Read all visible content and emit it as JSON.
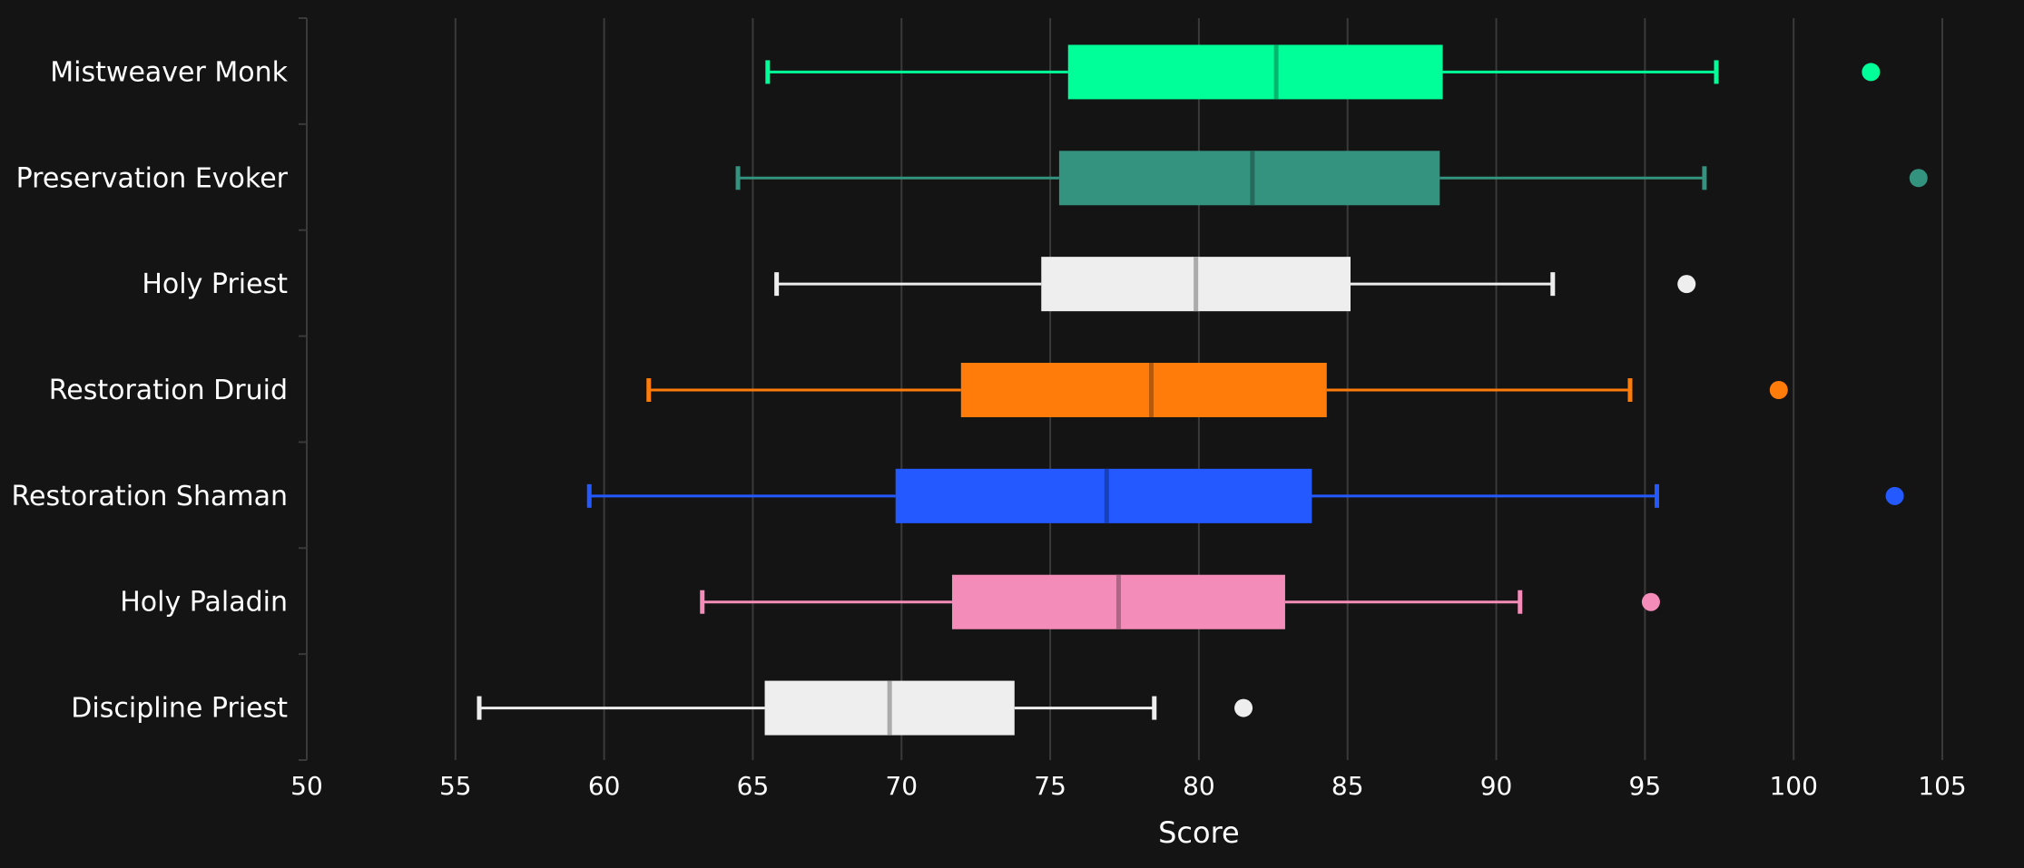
{
  "chart_data": {
    "type": "boxplot",
    "orientation": "horizontal",
    "title": "",
    "xlabel": "Score",
    "ylabel": "",
    "xlim": [
      50,
      106
    ],
    "xticks": [
      50,
      55,
      60,
      65,
      70,
      75,
      80,
      85,
      90,
      95,
      100,
      105
    ],
    "grid": true,
    "series": [
      {
        "name": "Mistweaver Monk",
        "color": "#00ff99",
        "whisker_low": 65.5,
        "q1": 75.6,
        "median": 82.6,
        "q3": 88.2,
        "whisker_high": 97.4,
        "outliers": [
          102.6
        ]
      },
      {
        "name": "Preservation Evoker",
        "color": "#33937f",
        "whisker_low": 64.5,
        "q1": 75.3,
        "median": 81.8,
        "q3": 88.1,
        "whisker_high": 97.0,
        "outliers": [
          104.2
        ]
      },
      {
        "name": "Holy Priest",
        "color": "#eeeeee",
        "whisker_low": 65.8,
        "q1": 74.7,
        "median": 79.9,
        "q3": 85.1,
        "whisker_high": 91.9,
        "outliers": [
          96.4
        ]
      },
      {
        "name": "Restoration Druid",
        "color": "#ff7c0a",
        "whisker_low": 61.5,
        "q1": 72.0,
        "median": 78.4,
        "q3": 84.3,
        "whisker_high": 94.5,
        "outliers": [
          99.5
        ]
      },
      {
        "name": "Restoration Shaman",
        "color": "#2459ff",
        "whisker_low": 59.5,
        "q1": 69.8,
        "median": 76.9,
        "q3": 83.8,
        "whisker_high": 95.4,
        "outliers": [
          103.4
        ]
      },
      {
        "name": "Holy Paladin",
        "color": "#f48cba",
        "whisker_low": 63.3,
        "q1": 71.7,
        "median": 77.3,
        "q3": 82.9,
        "whisker_high": 90.8,
        "outliers": [
          95.2
        ]
      },
      {
        "name": "Discipline Priest",
        "color": "#eeeeee",
        "whisker_low": 55.8,
        "q1": 65.4,
        "median": 69.6,
        "q3": 73.8,
        "whisker_high": 78.5,
        "outliers": [
          81.5
        ]
      }
    ]
  }
}
